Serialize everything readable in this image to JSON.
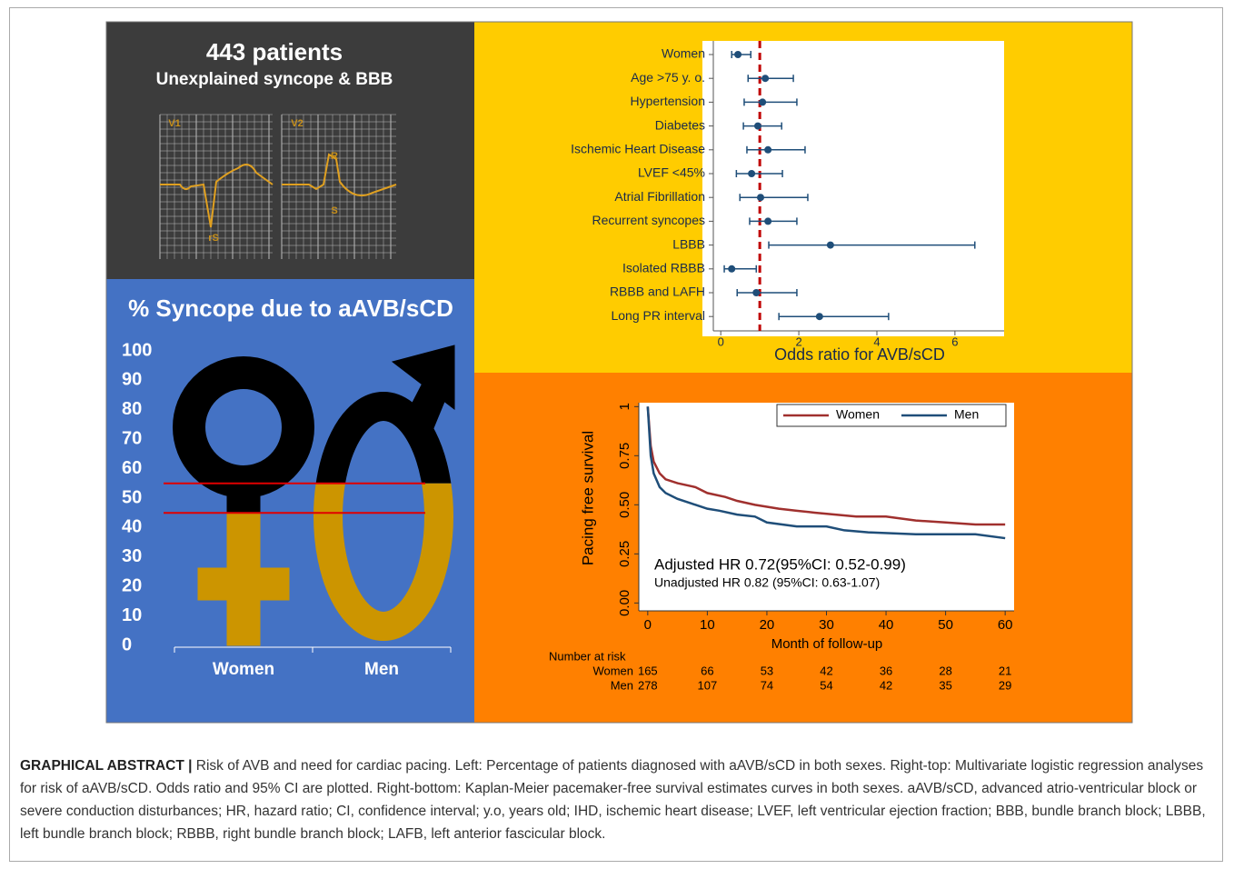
{
  "header_panel": {
    "title": "443 patients",
    "subtitle": "Unexplained syncope & BBB",
    "ecg_labels": [
      "V1",
      "V2",
      "rS",
      "R",
      "S"
    ]
  },
  "chart_data": [
    {
      "type": "pictogram",
      "title": "% Syncope due to aAVB/sCD",
      "categories": [
        "Women",
        "Men"
      ],
      "values": [
        45,
        55
      ],
      "color": "#cc9500",
      "ylim": [
        0,
        100
      ],
      "yticks": [
        0,
        10,
        20,
        30,
        40,
        50,
        60,
        70,
        80,
        90,
        100
      ]
    },
    {
      "type": "forest",
      "categories": [
        "Women",
        "Age >75 y. o.",
        "Hypertension",
        "Diabetes",
        "Ischemic Heart Disease",
        "LVEF <45%",
        "Atrial Fibrillation",
        "Recurrent syncopes",
        "LBBB",
        "Isolated RBBB",
        "RBBB and LAFH",
        "Long PR interval"
      ],
      "values": [
        0.44,
        1.14,
        1.07,
        0.95,
        1.21,
        0.79,
        1.02,
        1.21,
        2.81,
        0.28,
        0.91,
        2.53
      ],
      "ci_low": [
        0.28,
        0.7,
        0.6,
        0.58,
        0.67,
        0.4,
        0.49,
        0.74,
        1.23,
        0.09,
        0.42,
        1.49
      ],
      "ci_high": [
        0.77,
        1.86,
        1.95,
        1.56,
        2.16,
        1.58,
        2.23,
        1.95,
        6.51,
        0.91,
        1.95,
        4.3
      ],
      "color": "#1f4e79",
      "reference_line": 1,
      "reference_color": "#c00000",
      "xlim": [
        -0.47,
        7.26
      ],
      "xticks": [
        0,
        2,
        4,
        6
      ],
      "xlabel": "Odds ratio for AVB/sCD"
    },
    {
      "type": "line",
      "xlabel": "Month of follow-up",
      "ylabel": "Pacing free survival",
      "xlim": [
        -1.5,
        61.5
      ],
      "ylim": [
        -0.04,
        1.02
      ],
      "xticks": [
        0,
        10,
        20,
        30,
        40,
        50,
        60
      ],
      "yticks": [
        {
          "value": 0,
          "label": "0.00"
        },
        0.25,
        {
          "value": 0.5,
          "label": "0.50"
        },
        0.75,
        1
      ],
      "series": [
        {
          "name": "Women",
          "color": "#a0302e",
          "x": [
            0,
            0.5,
            1,
            2,
            3,
            5,
            8,
            10,
            13,
            15,
            18,
            22,
            25,
            28,
            35,
            40,
            45,
            50,
            55,
            60
          ],
          "values": [
            1,
            0.8,
            0.72,
            0.66,
            0.63,
            0.61,
            0.59,
            0.56,
            0.54,
            0.52,
            0.5,
            0.48,
            0.47,
            0.46,
            0.44,
            0.44,
            0.42,
            0.41,
            0.4,
            0.4
          ]
        },
        {
          "name": "Men",
          "color": "#1f4e79",
          "x": [
            0,
            0.5,
            1,
            2,
            3,
            5,
            8,
            10,
            12,
            15,
            18,
            20,
            25,
            30,
            33,
            37,
            45,
            55,
            60
          ],
          "values": [
            1,
            0.75,
            0.66,
            0.59,
            0.56,
            0.53,
            0.5,
            0.48,
            0.47,
            0.45,
            0.44,
            0.41,
            0.39,
            0.39,
            0.37,
            0.36,
            0.35,
            0.35,
            0.33
          ]
        }
      ],
      "annotations": [
        "Adjusted HR 0.72(95%CI: 0.52-0.99)",
        "Unadjusted HR 0.82 (95%CI: 0.63-1.07)"
      ],
      "risk_table": {
        "title": "Number at risk",
        "rows": [
          {
            "name": "Women",
            "counts": [
              165,
              66,
              53,
              42,
              36,
              28,
              21
            ]
          },
          {
            "name": "Men",
            "counts": [
              278,
              107,
              74,
              54,
              42,
              35,
              29
            ]
          }
        ]
      }
    }
  ],
  "caption": {
    "label": "GRAPHICAL ABSTRACT |",
    "text": "Risk of AVB and need for cardiac pacing. Left: Percentage of patients diagnosed with aAVB/sCD in both sexes. Right-top: Multivariate logistic regression analyses for risk of aAVB/sCD. Odds ratio and 95% CI are plotted. Right-bottom: Kaplan-Meier pacemaker-free survival estimates curves in both sexes. aAVB/sCD, advanced atrio-ventricular block or severe conduction disturbances; HR, hazard ratio; CI, confidence interval; y.o, years old; IHD, ischemic heart disease; LVEF, left ventricular ejection fraction; BBB, bundle branch block; LBBB, left bundle branch block; RBBB, right bundle branch block; LAFB, left anterior fascicular block."
  }
}
